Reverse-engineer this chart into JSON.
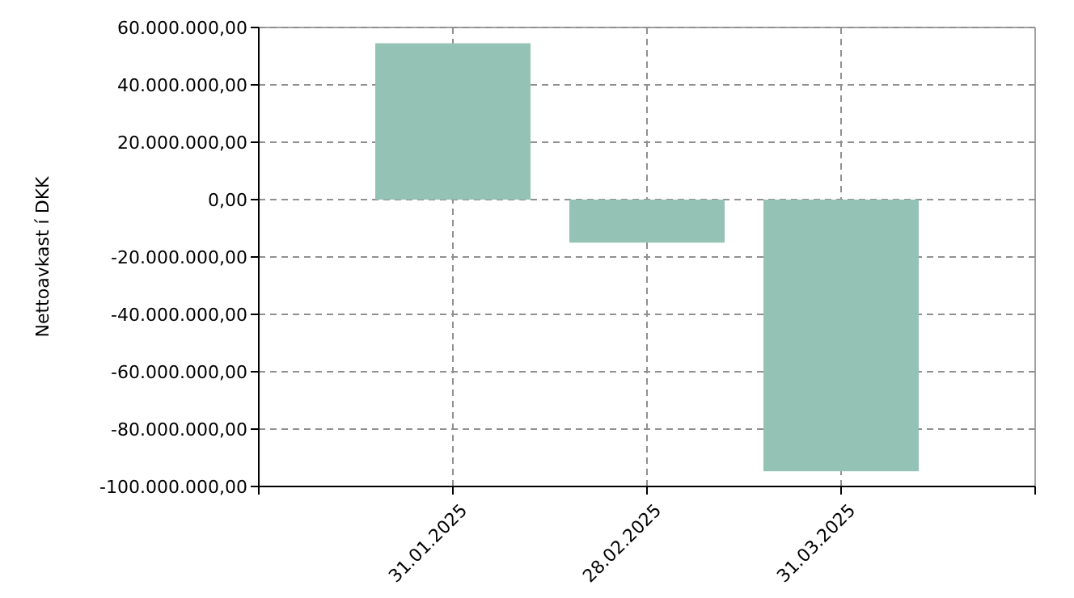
{
  "chart_data": {
    "type": "bar",
    "ylabel": "Nettoavkast í DKK",
    "categories": [
      "31.01.2025",
      "28.02.2025",
      "31.03.2025"
    ],
    "values": [
      54500000,
      -15000000,
      -94700000
    ],
    "color": "#94c2b4",
    "ylim": [
      -100000000,
      60000000
    ],
    "yticks": [
      {
        "value": -100000000,
        "label": "-100.000.000,00"
      },
      {
        "value": -80000000,
        "label": "-80.000.000,00"
      },
      {
        "value": -60000000,
        "label": "-60.000.000,00"
      },
      {
        "value": -40000000,
        "label": "-40.000.000,00"
      },
      {
        "value": -20000000,
        "label": "-20.000.000,00"
      },
      {
        "value": 0,
        "label": "0,00"
      },
      {
        "value": 20000000,
        "label": "20.000.000,00"
      },
      {
        "value": 40000000,
        "label": "40.000.000,00"
      },
      {
        "value": 60000000,
        "label": "60.000.000,00"
      }
    ],
    "grid": true
  }
}
